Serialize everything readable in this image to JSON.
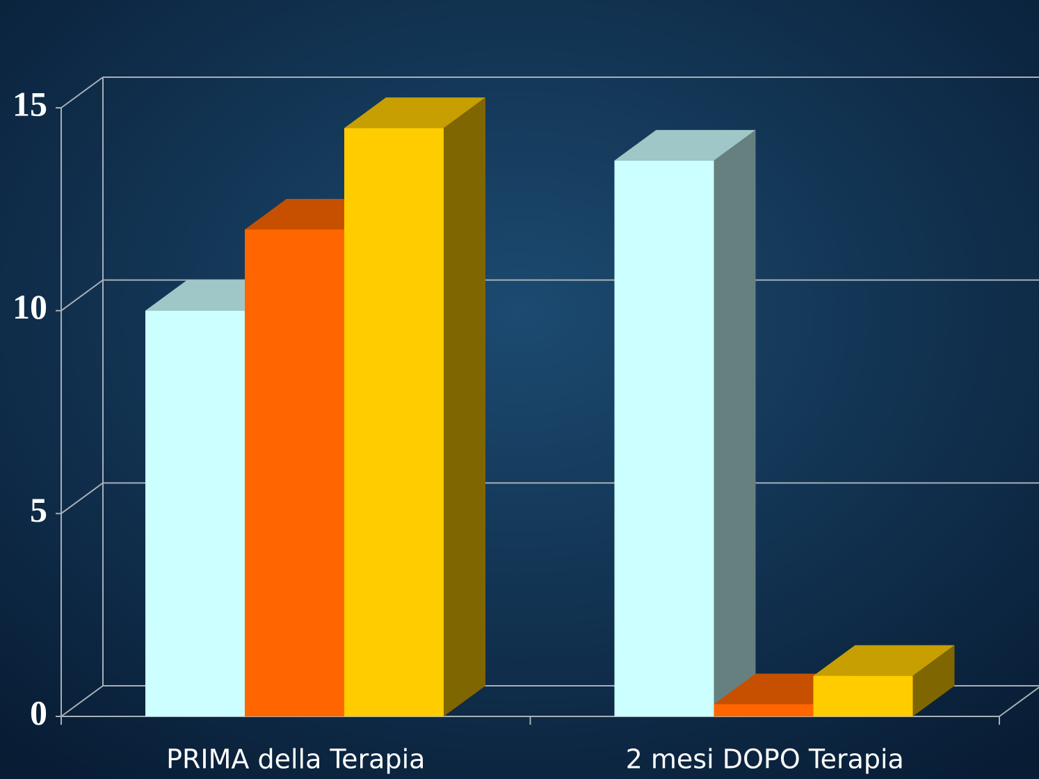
{
  "chart_data": {
    "type": "bar3d",
    "categories": [
      "PRIMA della Terapia",
      "2 mesi DOPO Terapia"
    ],
    "series": [
      {
        "color": "#ccffff",
        "values": [
          10,
          13.7
        ]
      },
      {
        "color": "#ff6600",
        "values": [
          12,
          0.3
        ]
      },
      {
        "color": "#ffcc00",
        "values": [
          14.5,
          1
        ]
      }
    ],
    "ylim": [
      0,
      15
    ],
    "yticks": [
      0,
      5,
      10,
      15
    ],
    "grid": true
  }
}
